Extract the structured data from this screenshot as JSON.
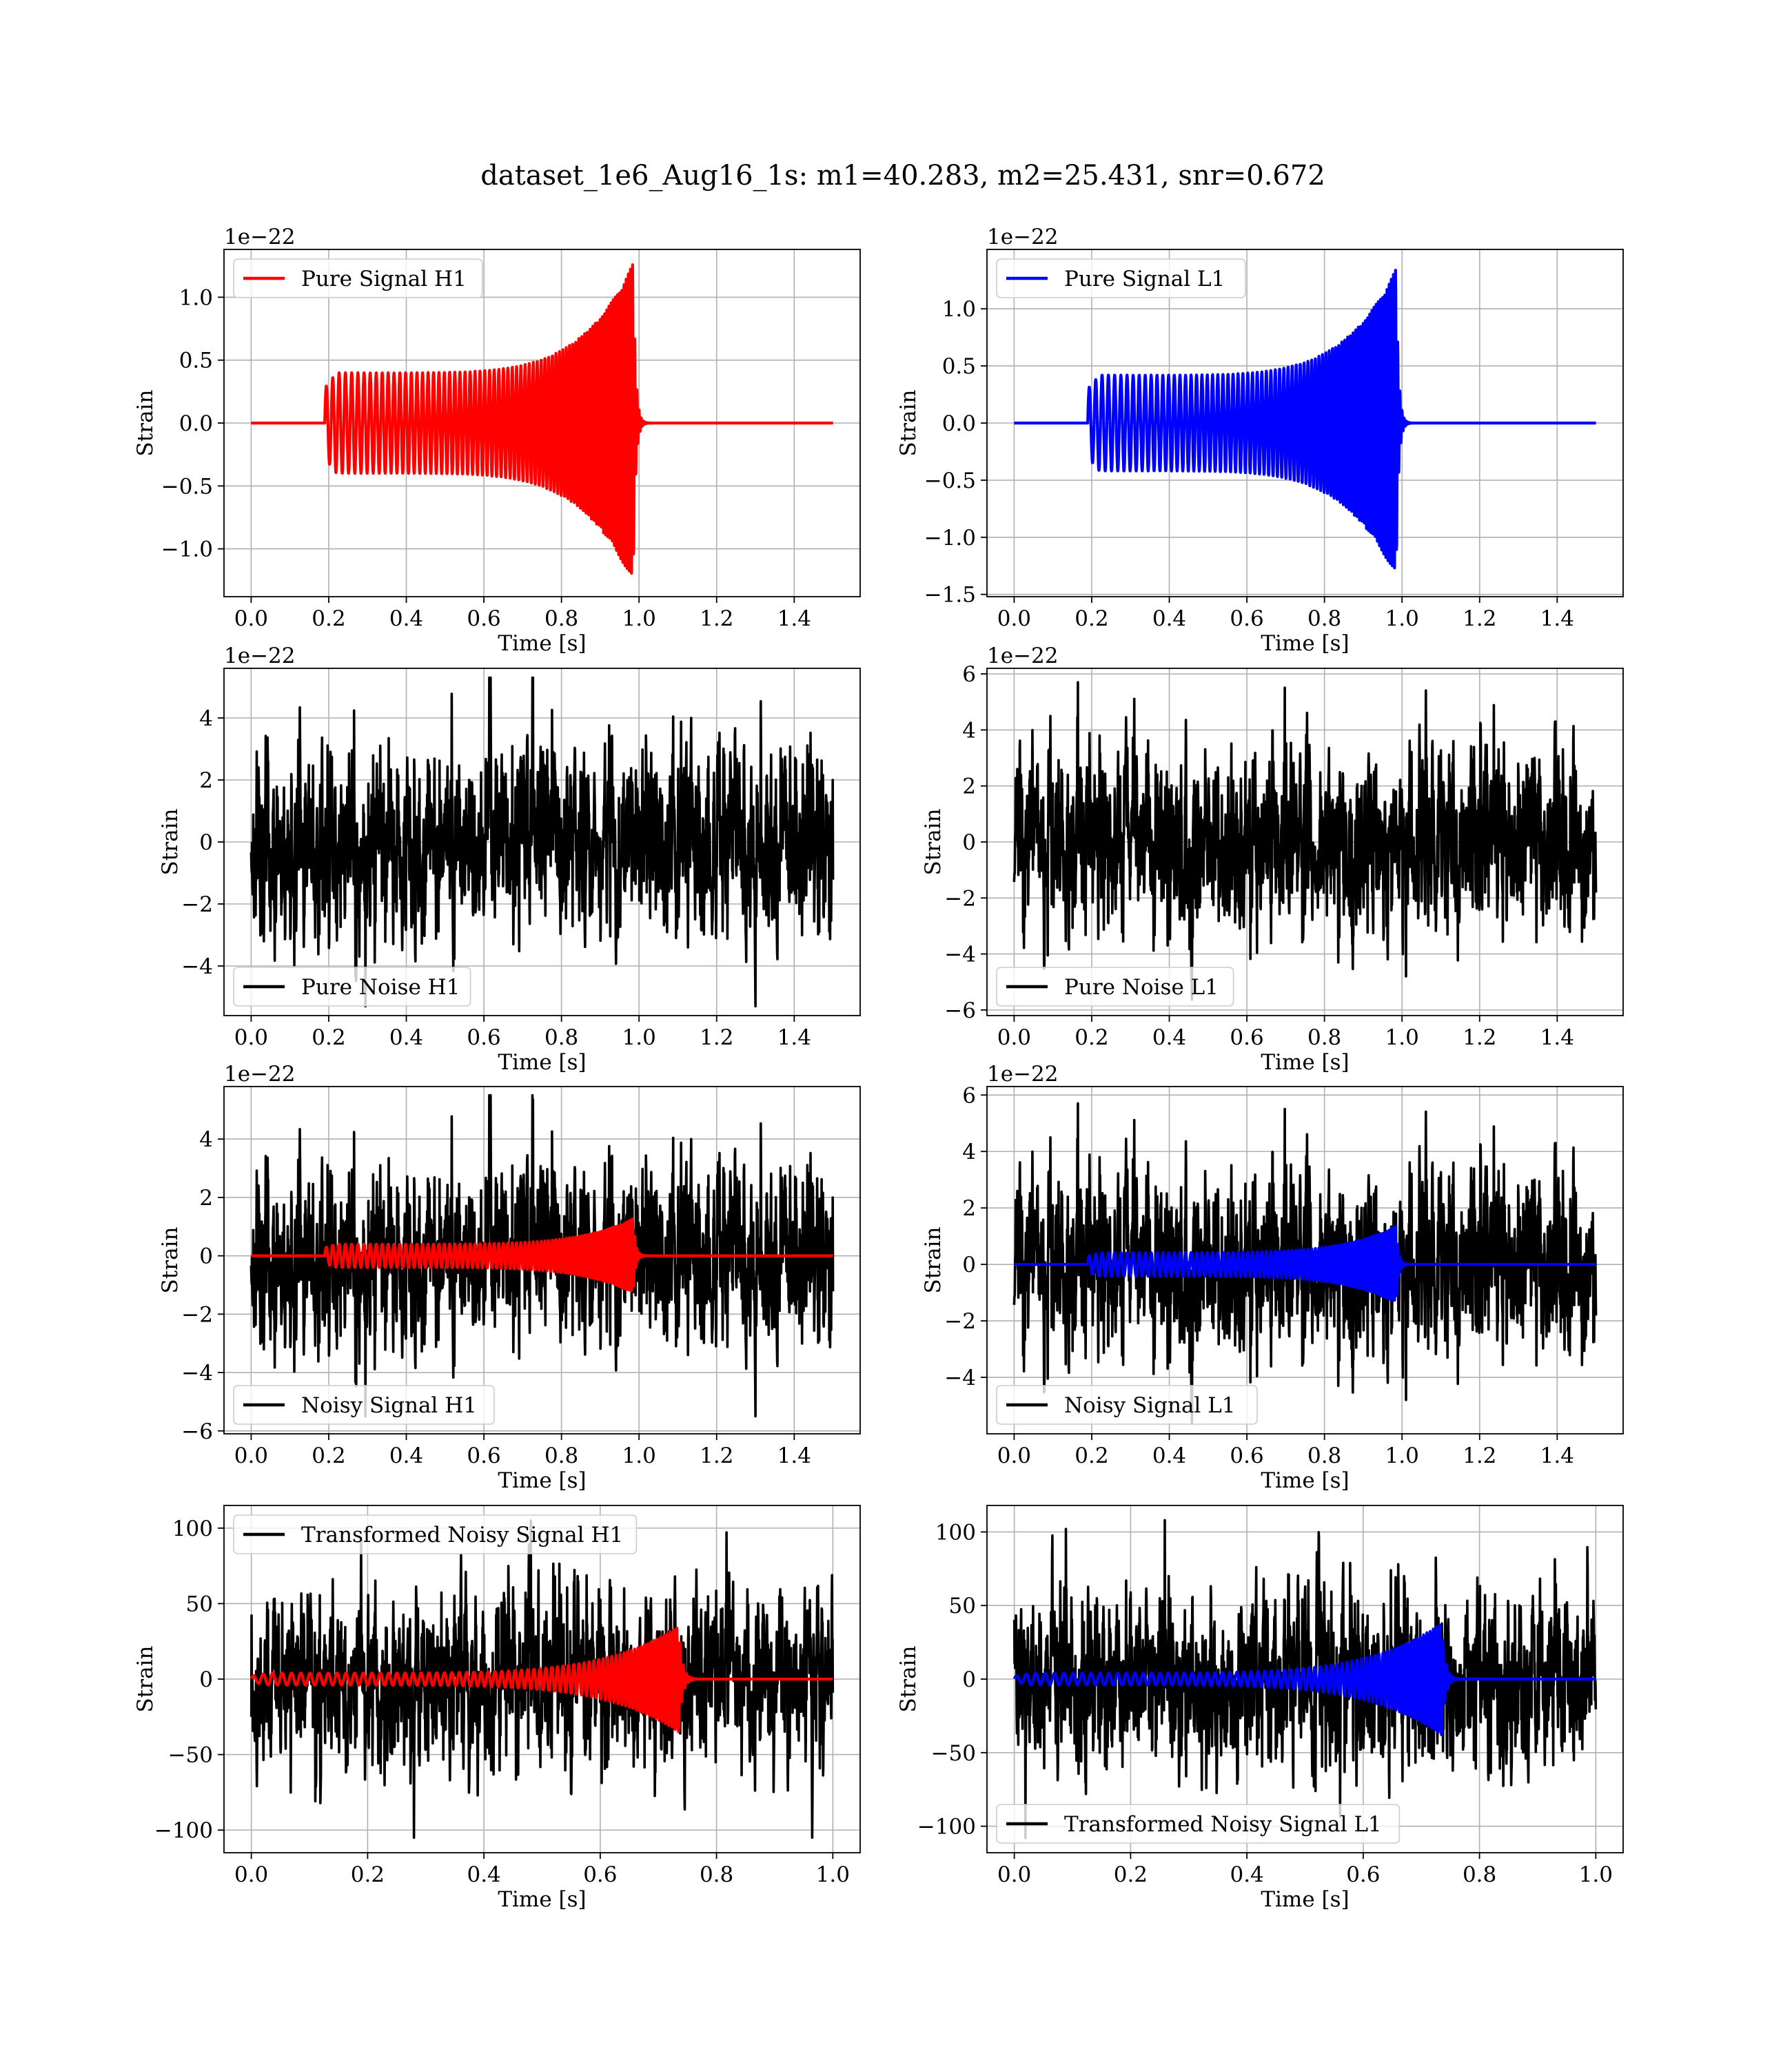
{
  "figure": {
    "title": "dataset_1e6_Aug16_1s: m1=40.283, m2=25.431, snr=0.672"
  },
  "colors": {
    "h1_signal": "#ff0000",
    "l1_signal": "#0000ff",
    "noise": "#000000",
    "grid": "#b0b0b0"
  },
  "chart_data": [
    {
      "id": "pure-signal-h1",
      "type": "line",
      "xlabel": "Time [s]",
      "ylabel": "Strain",
      "offset_text": "1e−22",
      "xlim": [
        -0.07,
        1.57
      ],
      "ylim": [
        -1.38,
        1.38
      ],
      "xticks": [
        0.0,
        0.2,
        0.4,
        0.6,
        0.8,
        1.0,
        1.2,
        1.4
      ],
      "xticklabels": [
        "0.0",
        "0.2",
        "0.4",
        "0.6",
        "0.8",
        "1.0",
        "1.2",
        "1.4"
      ],
      "yticks": [
        -1.0,
        -0.5,
        0.0,
        0.5,
        1.0
      ],
      "yticklabels": [
        "−1.0",
        "−0.5",
        "0.0",
        "0.5",
        "1.0"
      ],
      "legend_loc": "upper left",
      "grid": true,
      "series": [
        {
          "name": "Pure Signal H1",
          "kind": "chirp",
          "color": "#ff0000",
          "x_start": 0.0,
          "x_end": 1.5,
          "merger_time": 0.985,
          "onset_time": 0.19,
          "peak_amplitude": 1.27,
          "onset_amplitude": 0.28,
          "plateau_amplitude": 0.4
        }
      ]
    },
    {
      "id": "pure-signal-l1",
      "type": "line",
      "xlabel": "Time [s]",
      "ylabel": "Strain",
      "offset_text": "1e−22",
      "xlim": [
        -0.07,
        1.57
      ],
      "ylim": [
        -1.52,
        1.52
      ],
      "xticks": [
        0.0,
        0.2,
        0.4,
        0.6,
        0.8,
        1.0,
        1.2,
        1.4
      ],
      "xticklabels": [
        "0.0",
        "0.2",
        "0.4",
        "0.6",
        "0.8",
        "1.0",
        "1.2",
        "1.4"
      ],
      "yticks": [
        -1.5,
        -1.0,
        -0.5,
        0.0,
        0.5,
        1.0
      ],
      "yticklabels": [
        "−1.5",
        "−1.0",
        "−0.5",
        "0.0",
        "0.5",
        "1.0"
      ],
      "legend_loc": "upper left",
      "grid": true,
      "series": [
        {
          "name": "Pure Signal L1",
          "kind": "chirp",
          "color": "#0000ff",
          "x_start": 0.0,
          "x_end": 1.5,
          "merger_time": 0.985,
          "onset_time": 0.19,
          "peak_amplitude": 1.35,
          "onset_amplitude": 0.3,
          "plateau_amplitude": 0.42
        }
      ]
    },
    {
      "id": "pure-noise-h1",
      "type": "line",
      "xlabel": "Time [s]",
      "ylabel": "Strain",
      "offset_text": "1e−22",
      "xlim": [
        -0.07,
        1.57
      ],
      "ylim": [
        -5.6,
        5.6
      ],
      "xticks": [
        0.0,
        0.2,
        0.4,
        0.6,
        0.8,
        1.0,
        1.2,
        1.4
      ],
      "xticklabels": [
        "0.0",
        "0.2",
        "0.4",
        "0.6",
        "0.8",
        "1.0",
        "1.2",
        "1.4"
      ],
      "yticks": [
        -4,
        -2,
        0,
        2,
        4
      ],
      "yticklabels": [
        "−4",
        "−2",
        "0",
        "2",
        "4"
      ],
      "legend_loc": "lower left",
      "grid": true,
      "series": [
        {
          "name": "Pure Noise H1",
          "kind": "noise",
          "color": "#000000",
          "x_start": 0.0,
          "x_end": 1.5,
          "amplitude_std": 1.5,
          "max_abs": 5.3,
          "seed": 11
        }
      ]
    },
    {
      "id": "pure-noise-l1",
      "type": "line",
      "xlabel": "Time [s]",
      "ylabel": "Strain",
      "offset_text": "1e−22",
      "xlim": [
        -0.07,
        1.57
      ],
      "ylim": [
        -6.2,
        6.2
      ],
      "xticks": [
        0.0,
        0.2,
        0.4,
        0.6,
        0.8,
        1.0,
        1.2,
        1.4
      ],
      "xticklabels": [
        "0.0",
        "0.2",
        "0.4",
        "0.6",
        "0.8",
        "1.0",
        "1.2",
        "1.4"
      ],
      "yticks": [
        -6,
        -4,
        -2,
        0,
        2,
        4,
        6
      ],
      "yticklabels": [
        "−6",
        "−4",
        "−2",
        "0",
        "2",
        "4",
        "6"
      ],
      "legend_loc": "lower left",
      "grid": true,
      "series": [
        {
          "name": "Pure Noise L1",
          "kind": "noise",
          "color": "#000000",
          "x_start": 0.0,
          "x_end": 1.5,
          "amplitude_std": 1.6,
          "max_abs": 5.7,
          "seed": 23
        }
      ]
    },
    {
      "id": "noisy-signal-h1",
      "type": "line",
      "xlabel": "Time [s]",
      "ylabel": "Strain",
      "offset_text": "1e−22",
      "xlim": [
        -0.07,
        1.57
      ],
      "ylim": [
        -6.1,
        5.8
      ],
      "xticks": [
        0.0,
        0.2,
        0.4,
        0.6,
        0.8,
        1.0,
        1.2,
        1.4
      ],
      "xticklabels": [
        "0.0",
        "0.2",
        "0.4",
        "0.6",
        "0.8",
        "1.0",
        "1.2",
        "1.4"
      ],
      "yticks": [
        -6,
        -4,
        -2,
        0,
        2,
        4
      ],
      "yticklabels": [
        "−6",
        "−4",
        "−2",
        "0",
        "2",
        "4"
      ],
      "legend_loc": "lower left",
      "grid": true,
      "series": [
        {
          "name": "Noisy Signal H1",
          "kind": "noise",
          "color": "#000000",
          "x_start": 0.0,
          "x_end": 1.5,
          "amplitude_std": 1.5,
          "max_abs": 5.5,
          "seed": 11
        },
        {
          "name": "",
          "kind": "chirp",
          "color": "#ff0000",
          "x_start": 0.0,
          "x_end": 1.5,
          "merger_time": 0.985,
          "onset_time": 0.19,
          "peak_amplitude": 1.27,
          "onset_amplitude": 0.28,
          "plateau_amplitude": 0.4
        }
      ]
    },
    {
      "id": "noisy-signal-l1",
      "type": "line",
      "xlabel": "Time [s]",
      "ylabel": "Strain",
      "offset_text": "1e−22",
      "xlim": [
        -0.07,
        1.57
      ],
      "ylim": [
        -6.0,
        6.3
      ],
      "xticks": [
        0.0,
        0.2,
        0.4,
        0.6,
        0.8,
        1.0,
        1.2,
        1.4
      ],
      "xticklabels": [
        "0.0",
        "0.2",
        "0.4",
        "0.6",
        "0.8",
        "1.0",
        "1.2",
        "1.4"
      ],
      "yticks": [
        -4,
        -2,
        0,
        2,
        4,
        6
      ],
      "yticklabels": [
        "−4",
        "−2",
        "0",
        "2",
        "4",
        "6"
      ],
      "legend_loc": "lower left",
      "grid": true,
      "series": [
        {
          "name": "Noisy Signal L1",
          "kind": "noise",
          "color": "#000000",
          "x_start": 0.0,
          "x_end": 1.5,
          "amplitude_std": 1.6,
          "max_abs": 5.7,
          "seed": 23
        },
        {
          "name": "",
          "kind": "chirp",
          "color": "#0000ff",
          "x_start": 0.0,
          "x_end": 1.5,
          "merger_time": 0.985,
          "onset_time": 0.19,
          "peak_amplitude": 1.35,
          "onset_amplitude": 0.3,
          "plateau_amplitude": 0.42
        }
      ]
    },
    {
      "id": "transformed-noisy-signal-h1",
      "type": "line",
      "xlabel": "Time [s]",
      "ylabel": "Strain",
      "offset_text": "",
      "xlim": [
        -0.047,
        1.047
      ],
      "ylim": [
        -115,
        115
      ],
      "xticks": [
        0.0,
        0.2,
        0.4,
        0.6,
        0.8,
        1.0
      ],
      "xticklabels": [
        "0.0",
        "0.2",
        "0.4",
        "0.6",
        "0.8",
        "1.0"
      ],
      "yticks": [
        -100,
        -50,
        0,
        50,
        100
      ],
      "yticklabels": [
        "−100",
        "−50",
        "0",
        "50",
        "100"
      ],
      "legend_loc": "upper left",
      "grid": true,
      "series": [
        {
          "name": "Transformed Noisy Signal H1",
          "kind": "noise",
          "color": "#000000",
          "x_start": 0.0,
          "x_end": 1.0,
          "amplitude_std": 28,
          "max_abs": 105,
          "seed": 37
        },
        {
          "name": "",
          "kind": "chirp",
          "color": "#ff0000",
          "x_start": 0.0,
          "x_end": 1.0,
          "merger_time": 0.735,
          "onset_time": 0.0,
          "peak_amplitude": 35,
          "onset_amplitude": 2,
          "plateau_amplitude": 4
        }
      ]
    },
    {
      "id": "transformed-noisy-signal-l1",
      "type": "line",
      "xlabel": "Time [s]",
      "ylabel": "Strain",
      "offset_text": "",
      "xlim": [
        -0.047,
        1.047
      ],
      "ylim": [
        -118,
        118
      ],
      "xticks": [
        0.0,
        0.2,
        0.4,
        0.6,
        0.8,
        1.0
      ],
      "xticklabels": [
        "0.0",
        "0.2",
        "0.4",
        "0.6",
        "0.8",
        "1.0"
      ],
      "yticks": [
        -100,
        -50,
        0,
        50,
        100
      ],
      "yticklabels": [
        "−100",
        "−50",
        "0",
        "50",
        "100"
      ],
      "legend_loc": "lower left",
      "grid": true,
      "series": [
        {
          "name": "Transformed Noisy Signal L1",
          "kind": "noise",
          "color": "#000000",
          "x_start": 0.0,
          "x_end": 1.0,
          "amplitude_std": 30,
          "max_abs": 108,
          "seed": 41
        },
        {
          "name": "",
          "kind": "chirp",
          "color": "#0000ff",
          "x_start": 0.0,
          "x_end": 1.0,
          "merger_time": 0.735,
          "onset_time": 0.0,
          "peak_amplitude": 38,
          "onset_amplitude": 2,
          "plateau_amplitude": 4
        }
      ]
    }
  ]
}
